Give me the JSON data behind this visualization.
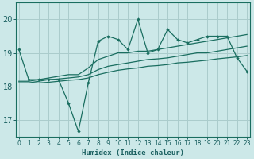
{
  "xlabel": "Humidex (Indice chaleur)",
  "background_color": "#cce8e8",
  "grid_color": "#aacccc",
  "line_color": "#1a6e60",
  "x_values": [
    0,
    1,
    2,
    3,
    4,
    5,
    6,
    7,
    8,
    9,
    10,
    11,
    12,
    13,
    14,
    15,
    16,
    17,
    18,
    19,
    20,
    21,
    22,
    23
  ],
  "line_jagged": [
    19.1,
    18.2,
    18.2,
    18.2,
    18.2,
    17.5,
    16.65,
    18.1,
    19.35,
    19.5,
    19.4,
    19.1,
    20.0,
    19.0,
    19.1,
    19.7,
    19.4,
    19.3,
    19.4,
    19.5,
    19.5,
    19.5,
    18.85,
    18.45
  ],
  "line_upper": [
    18.15,
    18.15,
    18.2,
    18.25,
    18.3,
    18.35,
    18.35,
    18.55,
    18.8,
    18.9,
    19.0,
    19.0,
    19.05,
    19.05,
    19.1,
    19.15,
    19.2,
    19.25,
    19.3,
    19.35,
    19.4,
    19.45,
    19.5,
    19.55
  ],
  "line_mid": [
    18.1,
    18.1,
    18.15,
    18.2,
    18.22,
    18.25,
    18.28,
    18.35,
    18.5,
    18.6,
    18.65,
    18.7,
    18.75,
    18.8,
    18.82,
    18.85,
    18.9,
    18.95,
    19.0,
    19.0,
    19.05,
    19.1,
    19.15,
    19.2
  ],
  "line_lower": [
    18.1,
    18.1,
    18.1,
    18.12,
    18.15,
    18.18,
    18.2,
    18.25,
    18.35,
    18.42,
    18.48,
    18.52,
    18.55,
    18.6,
    18.62,
    18.65,
    18.7,
    18.72,
    18.75,
    18.78,
    18.82,
    18.85,
    18.88,
    18.92
  ],
  "ylim": [
    16.5,
    20.5
  ],
  "yticks": [
    17,
    18,
    19,
    20
  ],
  "xticks": [
    0,
    1,
    2,
    3,
    4,
    5,
    6,
    7,
    8,
    9,
    10,
    11,
    12,
    13,
    14,
    15,
    16,
    17,
    18,
    19,
    20,
    21,
    22,
    23
  ],
  "tick_color": "#1a6e60",
  "label_color": "#1a6060"
}
